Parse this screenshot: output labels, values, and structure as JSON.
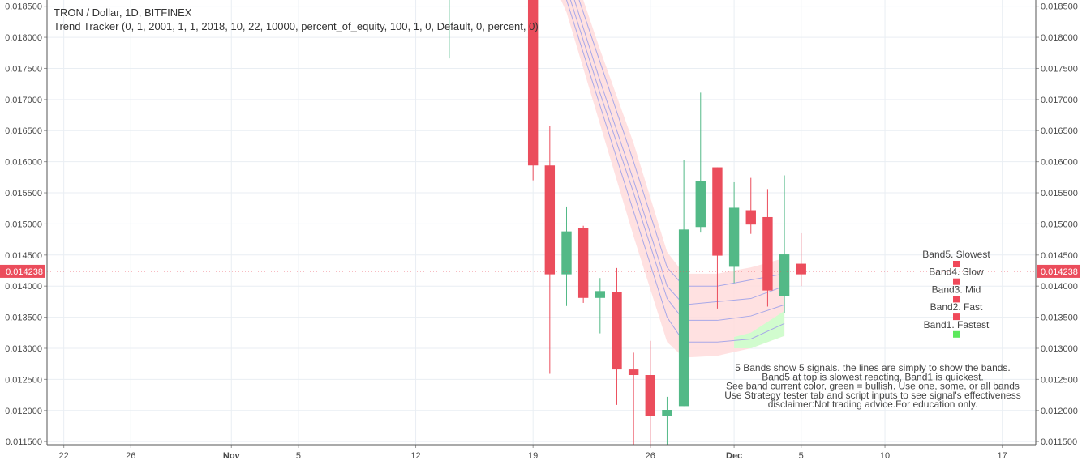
{
  "header": {
    "title": "TRON / Dollar, 1D, BITFINEX",
    "strategy": "Trend Tracker (0, 1, 2001, 1, 1, 2018, 10, 22, 10000, percent_of_equity, 100, 1, 0, Default, 0, percent, 0)"
  },
  "colors": {
    "up": "#53b987",
    "down": "#eb4d5c",
    "band_bearish": "#ffdcdc",
    "band_bullish": "#ccffcc",
    "band_line": "#a8a8e8",
    "grid": "#e9eef3",
    "axis_text": "#4a4a4a",
    "price_tag": "#eb4d5c"
  },
  "chart_data": {
    "type": "candlestick",
    "ylim": [
      0.01145,
      0.0186
    ],
    "y_ticks": [
      "0.018500",
      "0.018000",
      "0.017500",
      "0.017000",
      "0.016500",
      "0.016000",
      "0.015500",
      "0.015000",
      "0.014500",
      "0.014000",
      "0.013500",
      "0.013000",
      "0.012500",
      "0.012000",
      "0.011500"
    ],
    "x_ticks": [
      {
        "label": "22",
        "date": "2018-10-22"
      },
      {
        "label": "26",
        "date": "2018-10-26"
      },
      {
        "label": "Nov",
        "date": "2018-11-01"
      },
      {
        "label": "5",
        "date": "2018-11-05"
      },
      {
        "label": "12",
        "date": "2018-11-12"
      },
      {
        "label": "19",
        "date": "2018-11-19"
      },
      {
        "label": "26",
        "date": "2018-11-26"
      },
      {
        "label": "Dec",
        "date": "2018-12-01"
      },
      {
        "label": "5",
        "date": "2018-12-05"
      },
      {
        "label": "10",
        "date": "2018-12-10"
      },
      {
        "label": "17",
        "date": "2018-12-17"
      }
    ],
    "x_range": [
      "2018-10-21",
      "2018-12-19"
    ],
    "last_price": "0.014238",
    "candles": [
      {
        "date": "2018-11-14",
        "open": 0.0193,
        "high": 0.0195,
        "low": 0.01766,
        "close": 0.0193
      },
      {
        "date": "2018-11-19",
        "open": 0.0187,
        "high": 0.0187,
        "low": 0.0157,
        "close": 0.01594
      },
      {
        "date": "2018-11-20",
        "open": 0.01594,
        "high": 0.01657,
        "low": 0.01259,
        "close": 0.01419
      },
      {
        "date": "2018-11-21",
        "open": 0.01419,
        "high": 0.01528,
        "low": 0.01368,
        "close": 0.01488
      },
      {
        "date": "2018-11-22",
        "open": 0.01494,
        "high": 0.01497,
        "low": 0.01373,
        "close": 0.01381
      },
      {
        "date": "2018-11-23",
        "open": 0.01381,
        "high": 0.01413,
        "low": 0.01324,
        "close": 0.01392
      },
      {
        "date": "2018-11-24",
        "open": 0.0139,
        "high": 0.01429,
        "low": 0.01209,
        "close": 0.01266
      },
      {
        "date": "2018-11-25",
        "open": 0.01266,
        "high": 0.01293,
        "low": 0.01145,
        "close": 0.01257
      },
      {
        "date": "2018-11-26",
        "open": 0.01257,
        "high": 0.01312,
        "low": 0.0114,
        "close": 0.01191
      },
      {
        "date": "2018-11-27",
        "open": 0.01191,
        "high": 0.01222,
        "low": 0.01145,
        "close": 0.01201
      },
      {
        "date": "2018-11-28",
        "open": 0.01207,
        "high": 0.01603,
        "low": 0.01207,
        "close": 0.01491
      },
      {
        "date": "2018-11-29",
        "open": 0.01495,
        "high": 0.01711,
        "low": 0.01486,
        "close": 0.01569
      },
      {
        "date": "2018-11-30",
        "open": 0.01591,
        "high": 0.01591,
        "low": 0.01364,
        "close": 0.01449
      },
      {
        "date": "2018-12-01",
        "open": 0.01431,
        "high": 0.01567,
        "low": 0.01405,
        "close": 0.01526
      },
      {
        "date": "2018-12-02",
        "open": 0.01522,
        "high": 0.01574,
        "low": 0.01484,
        "close": 0.01499
      },
      {
        "date": "2018-12-03",
        "open": 0.01511,
        "high": 0.01556,
        "low": 0.01367,
        "close": 0.01393
      },
      {
        "date": "2018-12-04",
        "open": 0.01384,
        "high": 0.01578,
        "low": 0.01357,
        "close": 0.01451
      },
      {
        "date": "2018-12-05",
        "open": 0.01436,
        "high": 0.01485,
        "low": 0.014,
        "close": 0.01419
      }
    ],
    "bands": {
      "dates": [
        "2018-11-19",
        "2018-11-21",
        "2018-11-23",
        "2018-11-25",
        "2018-11-27",
        "2018-11-28",
        "2018-11-30",
        "2018-12-02",
        "2018-12-04"
      ],
      "upper": [
        0.0206,
        0.0194,
        0.0178,
        0.0163,
        0.01455,
        0.0142,
        0.0142,
        0.0143,
        0.01445
      ],
      "lower": [
        0.0196,
        0.0184,
        0.0166,
        0.0148,
        0.0131,
        0.01285,
        0.01288,
        0.013,
        0.0132
      ],
      "lines": [
        [
          0.0204,
          0.0192,
          0.0176,
          0.016,
          0.0143,
          0.014,
          0.014,
          0.0141,
          0.0142
        ],
        [
          0.0202,
          0.019,
          0.0173,
          0.0157,
          0.014,
          0.0137,
          0.01375,
          0.0138,
          0.014
        ],
        [
          0.02,
          0.0188,
          0.0171,
          0.0155,
          0.0138,
          0.01345,
          0.01345,
          0.01352,
          0.0137
        ],
        [
          0.0198,
          0.0186,
          0.0169,
          0.0152,
          0.0135,
          0.0131,
          0.0131,
          0.01315,
          0.0134
        ]
      ],
      "bullish_from": "2018-12-01",
      "bullish_bottom_band": {
        "dates": [
          "2018-12-01",
          "2018-12-02",
          "2018-12-04"
        ],
        "upper": [
          0.01318,
          0.01325,
          0.0136
        ],
        "lower": [
          0.013,
          0.013,
          0.0132
        ]
      }
    },
    "legend": {
      "items": [
        {
          "label": "Band5. Slowest",
          "color": "#f0495a"
        },
        {
          "label": "Band4. Slow",
          "color": "#f0495a"
        },
        {
          "label": "Band3. Mid",
          "color": "#f0495a"
        },
        {
          "label": "Band2. Fast",
          "color": "#f0495a"
        },
        {
          "label": "Band1. Fastest",
          "color": "#5ce85c"
        }
      ]
    },
    "note_lines": [
      "5 Bands show 5 signals. the lines are simply to show the bands.",
      "Band5 at top is slowest reacting, Band1 is quickest.",
      "See band current color, green = bullish. Use one, some, or all bands",
      "Use Strategy tester tab and script inputs to see signal's effectiveness",
      "disclaimer:Not trading advice.For education only."
    ]
  }
}
